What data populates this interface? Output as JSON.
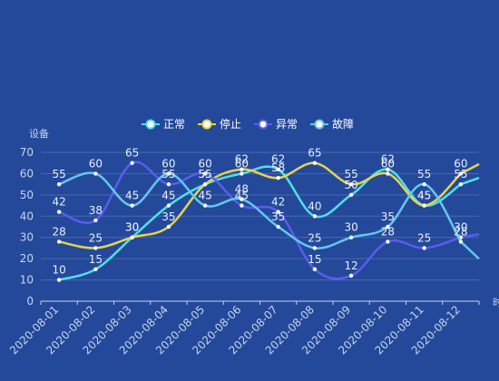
{
  "chart_data": {
    "type": "line",
    "smooth": true,
    "ylabel": "设备",
    "xlabel": "时",
    "ylim": [
      0,
      70
    ],
    "yticks": [
      0,
      10,
      20,
      30,
      40,
      50,
      60,
      70
    ],
    "grid": true,
    "legend_position": "top-center",
    "categories": [
      "2020-08-01",
      "2020-08-02",
      "2020-08-03",
      "2020-08-04",
      "2020-08-05",
      "2020-08-06",
      "2020-08-07",
      "2020-08-08",
      "2020-08-09",
      "2020-08-10",
      "2020-08-11",
      "2020-08-12"
    ],
    "series": [
      {
        "name": "正常",
        "color": "#4fe0e8",
        "values": [
          10,
          15,
          30,
          45,
          55,
          60,
          62,
          40,
          50,
          62,
          45,
          55
        ]
      },
      {
        "name": "停止",
        "color": "#e8d34a",
        "values": [
          28,
          25,
          30,
          35,
          55,
          62,
          58,
          65,
          55,
          60,
          45,
          60
        ]
      },
      {
        "name": "异常",
        "color": "#5b5cf0",
        "values": [
          42,
          38,
          65,
          55,
          60,
          45,
          42,
          15,
          12,
          28,
          25,
          30
        ]
      },
      {
        "name": "故障",
        "color": "#63c8ee",
        "values": [
          55,
          60,
          45,
          60,
          45,
          48,
          35,
          25,
          30,
          35,
          55,
          28
        ]
      }
    ]
  }
}
